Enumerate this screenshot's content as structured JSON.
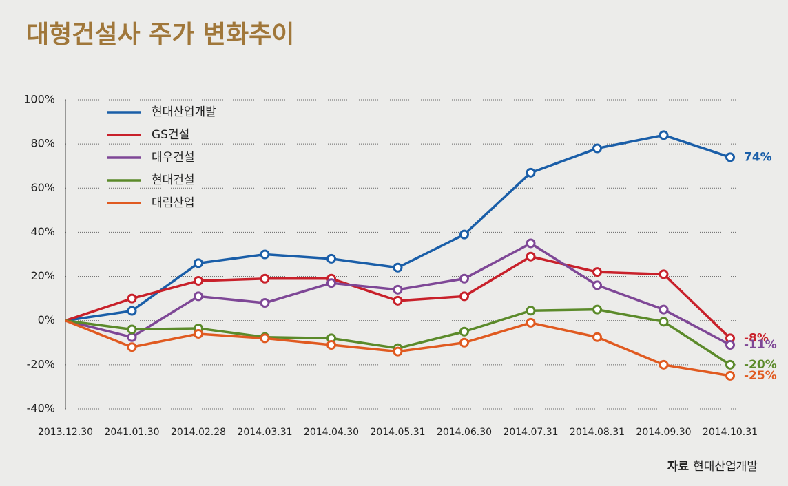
{
  "chart_data": {
    "type": "line",
    "title": "대형건설사 주가 변화추이",
    "categories": [
      "2013.12.30",
      "2041.01.30",
      "2014.02.28",
      "2014.03.31",
      "2014.04.30",
      "2014.05.31",
      "2014.06.30",
      "2014.07.31",
      "2014.08.31",
      "2014.09.30",
      "2014.10.31"
    ],
    "series": [
      {
        "name": "현대산업개발",
        "color": "#1a5ea8",
        "values": [
          0,
          4.4,
          26,
          30,
          28,
          24,
          39,
          67,
          78,
          84,
          74
        ],
        "value_labels": [
          null,
          null,
          null,
          null,
          null,
          null,
          null,
          null,
          null,
          null,
          "74%"
        ]
      },
      {
        "name": "GS건설",
        "color": "#c8202a",
        "values": [
          0,
          10,
          18,
          19,
          19,
          9,
          11,
          29,
          22,
          21,
          -8
        ],
        "value_labels": [
          null,
          null,
          null,
          null,
          null,
          null,
          null,
          null,
          null,
          null,
          "-8%"
        ]
      },
      {
        "name": "대우건설",
        "color": "#7e4796",
        "values": [
          0,
          -7.5,
          11,
          8,
          17,
          14,
          19,
          35,
          16,
          5,
          -11
        ],
        "value_labels": [
          null,
          null,
          null,
          null,
          null,
          null,
          null,
          null,
          null,
          null,
          "-11%"
        ]
      },
      {
        "name": "현대건설",
        "color": "#5b8a2a",
        "values": [
          0,
          -4,
          -3.5,
          -7.5,
          -8,
          -12.5,
          -5,
          4.5,
          5,
          -0.5,
          -20
        ],
        "value_labels": [
          null,
          null,
          null,
          null,
          null,
          null,
          null,
          null,
          null,
          null,
          "-20%"
        ]
      },
      {
        "name": "대림산업",
        "color": "#e05a20",
        "values": [
          0,
          -12,
          -6,
          -8,
          -11,
          -14,
          -10,
          -1,
          -7.5,
          -20,
          -25
        ],
        "value_labels": [
          null,
          null,
          null,
          null,
          null,
          null,
          null,
          null,
          null,
          null,
          "-25%"
        ]
      }
    ],
    "ylim": [
      -40,
      100
    ],
    "yticks": [
      {
        "value": -40,
        "label": "-40%"
      },
      {
        "value": -20,
        "label": "-20%"
      },
      {
        "value": 0,
        "label": "0%"
      },
      {
        "value": 20,
        "label": "20%"
      },
      {
        "value": 40,
        "label": "40%"
      },
      {
        "value": 60,
        "label": "60%"
      },
      {
        "value": 80,
        "label": "80%"
      },
      {
        "value": 100,
        "label": "100%"
      }
    ],
    "grid": true,
    "legend": "upper left",
    "source": {
      "label": "자료",
      "text": "현대산업개발"
    }
  }
}
